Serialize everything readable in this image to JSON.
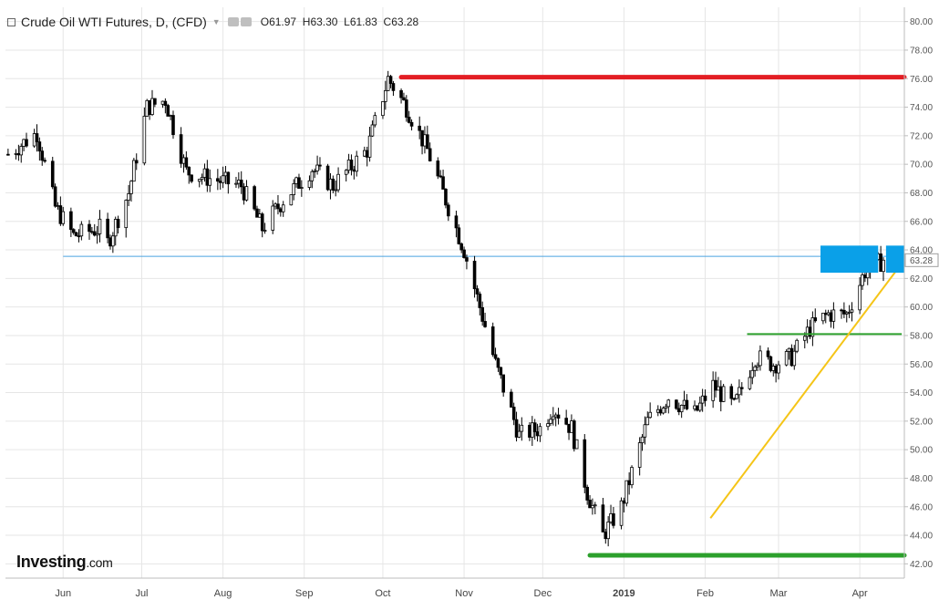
{
  "header": {
    "title": "Crude Oil WTI Futures, D, (CFD)",
    "open_label": "O",
    "open": "61.97",
    "high_label": "H",
    "high": "63.30",
    "low_label": "L",
    "low": "61.83",
    "close_label": "C",
    "close": "63.28",
    "icons": [
      "collapse-box-icon",
      "dropdown-arrow-icon",
      "eye-icon",
      "gear-icon"
    ]
  },
  "logo": {
    "brand": "Investing",
    "suffix": ".com"
  },
  "colors": {
    "resistance": "#e31e24",
    "support": "#2ca02c",
    "mid_support": "#2ca02c",
    "trend": "#f5c518",
    "price_line": "#4aa3e0",
    "highlight": "#0aa0e8",
    "candle": "#000000"
  },
  "chart_data": {
    "type": "candlestick",
    "title": "Crude Oil WTI Futures, D, (CFD)",
    "ylim": [
      41,
      81
    ],
    "y_ticks": [
      "42.00",
      "44.00",
      "46.00",
      "48.00",
      "50.00",
      "52.00",
      "54.00",
      "56.00",
      "58.00",
      "60.00",
      "62.00",
      "64.00",
      "66.00",
      "68.00",
      "70.00",
      "72.00",
      "74.00",
      "76.00",
      "78.00",
      "80.00"
    ],
    "x_ticks": [
      "Jun",
      "Jul",
      "Aug",
      "Sep",
      "Oct",
      "Nov",
      "Dec",
      "2019",
      "Feb",
      "Mar",
      "Apr"
    ],
    "x_tick_dates": [
      "2018-06-01",
      "2018-07-01",
      "2018-08-01",
      "2018-09-01",
      "2018-10-01",
      "2018-11-01",
      "2018-12-01",
      "2019-01-01",
      "2019-02-01",
      "2019-03-01",
      "2019-04-01"
    ],
    "x_range": [
      "2018-05-10",
      "2019-04-18"
    ],
    "last_price_label": "63.28",
    "last_price": 63.28,
    "price_anchors": [
      [
        "2018-05-11",
        70.7
      ],
      [
        "2018-05-22",
        72.2
      ],
      [
        "2018-05-29",
        67.0
      ],
      [
        "2018-06-05",
        65.0
      ],
      [
        "2018-06-15",
        65.5
      ],
      [
        "2018-06-18",
        64.5
      ],
      [
        "2018-06-26",
        68.0
      ],
      [
        "2018-07-03",
        74.0
      ],
      [
        "2018-07-10",
        74.5
      ],
      [
        "2018-07-18",
        69.5
      ],
      [
        "2018-07-27",
        69.0
      ],
      [
        "2018-08-08",
        68.5
      ],
      [
        "2018-08-16",
        65.5
      ],
      [
        "2018-08-24",
        67.5
      ],
      [
        "2018-09-04",
        69.7
      ],
      [
        "2018-09-12",
        68.5
      ],
      [
        "2018-09-25",
        71.0
      ],
      [
        "2018-10-03",
        76.0
      ],
      [
        "2018-10-10",
        74.0
      ],
      [
        "2018-10-18",
        71.0
      ],
      [
        "2018-10-25",
        67.5
      ],
      [
        "2018-11-01",
        64.0
      ],
      [
        "2018-11-13",
        56.0
      ],
      [
        "2018-11-22",
        51.0
      ],
      [
        "2018-11-30",
        51.5
      ],
      [
        "2018-12-05",
        53.0
      ],
      [
        "2018-12-12",
        51.5
      ],
      [
        "2018-12-18",
        47.0
      ],
      [
        "2018-12-24",
        44.0
      ],
      [
        "2018-12-31",
        46.0
      ],
      [
        "2019-01-10",
        52.0
      ],
      [
        "2019-01-18",
        53.7
      ],
      [
        "2019-01-28",
        52.5
      ],
      [
        "2019-02-04",
        54.5
      ],
      [
        "2019-02-12",
        53.0
      ],
      [
        "2019-02-20",
        56.5
      ],
      [
        "2019-02-27",
        56.0
      ],
      [
        "2019-03-06",
        56.5
      ],
      [
        "2019-03-13",
        58.5
      ],
      [
        "2019-03-20",
        59.5
      ],
      [
        "2019-03-27",
        59.5
      ],
      [
        "2019-04-03",
        62.5
      ],
      [
        "2019-04-10",
        63.28
      ]
    ],
    "annotations": {
      "resistance_line": {
        "y": 76.1,
        "from": "2018-10-08",
        "to": "2019-04-18"
      },
      "support_line": {
        "y": 42.6,
        "from": "2018-12-19",
        "to": "2019-04-18"
      },
      "mid_support_line": {
        "y": 58.1,
        "from": "2019-02-17",
        "to": "2019-04-17"
      },
      "price_level_line": {
        "y": 63.55,
        "from": "2018-06-01",
        "to": "2019-04-18"
      },
      "trend_line": {
        "from": [
          "2019-02-03",
          45.2
        ],
        "to": [
          "2019-04-18",
          63.3
        ]
      },
      "highlight_zones": [
        {
          "from": "2019-03-17",
          "to": "2019-04-08",
          "y1": 62.4,
          "y2": 64.3
        },
        {
          "from": "2019-04-11",
          "to": "2019-04-18",
          "y1": 62.4,
          "y2": 64.3
        }
      ]
    }
  }
}
